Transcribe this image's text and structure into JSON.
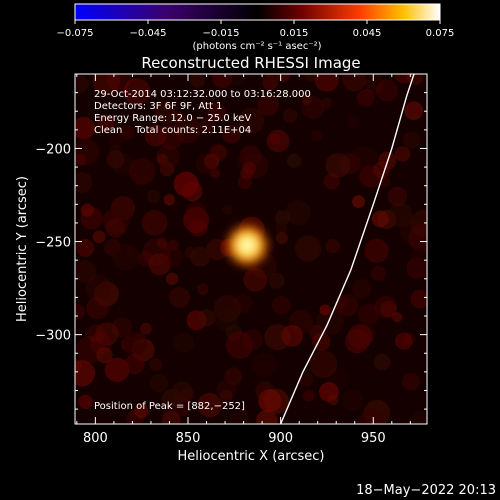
{
  "colorbar": {
    "ticks": [
      "−0.075",
      "−0.045",
      "−0.015",
      "0.015",
      "0.045",
      "0.075"
    ],
    "tick_values": [
      -0.075,
      -0.045,
      -0.015,
      0.015,
      0.045,
      0.075
    ],
    "range": [
      -0.075,
      0.075
    ],
    "unit_label": "(photons cm⁻² s⁻¹ asec⁻²)",
    "colormap": [
      "#0000ff",
      "#3b006e",
      "#000000",
      "#6e0000",
      "#ff3c00",
      "#ffc000",
      "#ffffff"
    ]
  },
  "chart_data": {
    "type": "heatmap",
    "title": "Reconstructed RHESSI Image",
    "xlabel": "Heliocentric X (arcsec)",
    "ylabel": "Heliocentric Y (arcsec)",
    "xlim": [
      789,
      979
    ],
    "ylim": [
      -348,
      -160
    ],
    "x_ticks": [
      800,
      850,
      900,
      950
    ],
    "y_ticks": [
      -200,
      -250,
      -300
    ],
    "y_tick_labels": [
      "−200",
      "−250",
      "−300"
    ],
    "peak": {
      "x": 882,
      "y": -252,
      "value": 0.075
    },
    "limb_curve": [
      [
        900,
        -348
      ],
      [
        912,
        -320
      ],
      [
        925,
        -295
      ],
      [
        938,
        -265
      ],
      [
        950,
        -230
      ],
      [
        960,
        -200
      ],
      [
        968,
        -172
      ],
      [
        972,
        -160
      ]
    ],
    "info_lines": [
      "29-Oct-2014 03:12:32.000 to 03:16:28.000",
      "Detectors: 3F 6F 9F, Att 1",
      "Energy Range: 12.0 − 25.0 keV",
      "Clean    Total counts: 2.11E+04"
    ],
    "peak_label": "Position of Peak = [882,−252]"
  },
  "footer": {
    "timestamp": "18−May−2022 20:13"
  }
}
